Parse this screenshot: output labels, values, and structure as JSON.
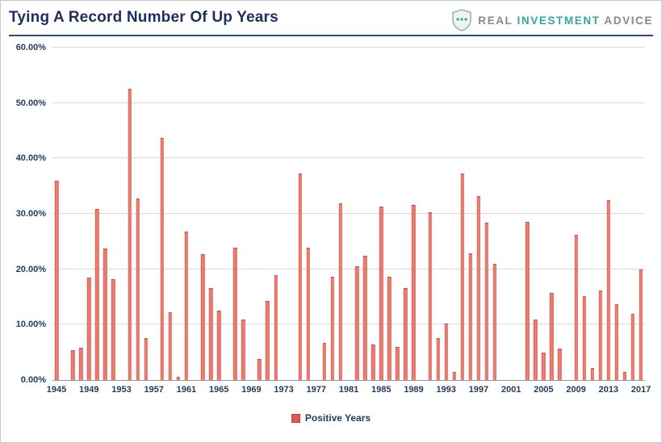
{
  "header": {
    "title": "Tying A Record Number Of Up Years",
    "logo": {
      "word1": "REAL",
      "word2": "INVESTMENT",
      "word3": "ADVICE"
    }
  },
  "legend": {
    "label": "Positive Years"
  },
  "colors": {
    "bar": "#E8655A",
    "title_navy": "#1E2F5E",
    "axis_text": "#1E3A5F",
    "header_rule": "#2A4A8C",
    "logo_teal": "#33A79C",
    "logo_gray": "#87898C"
  },
  "chart_data": {
    "type": "bar",
    "title": "Tying A Record Number Of Up Years",
    "xlabel": "",
    "ylabel": "",
    "ylim": [
      0,
      60
    ],
    "grid": true,
    "legend_position": "bottom",
    "legend_entries": [
      "Positive Years"
    ],
    "y_ticks": [
      "0.00%",
      "10.00%",
      "20.00%",
      "30.00%",
      "40.00%",
      "50.00%",
      "60.00%"
    ],
    "x_tick_labels": [
      "1945",
      "1949",
      "1953",
      "1957",
      "1961",
      "1965",
      "1969",
      "1973",
      "1977",
      "1981",
      "1985",
      "1989",
      "1993",
      "1997",
      "2001",
      "2005",
      "2009",
      "2013",
      "2017"
    ],
    "x_start_year": 1945,
    "years": [
      1945,
      1946,
      1947,
      1948,
      1949,
      1950,
      1951,
      1952,
      1953,
      1954,
      1955,
      1956,
      1957,
      1958,
      1959,
      1960,
      1961,
      1962,
      1963,
      1964,
      1965,
      1966,
      1967,
      1968,
      1969,
      1970,
      1971,
      1972,
      1973,
      1974,
      1975,
      1976,
      1977,
      1978,
      1979,
      1980,
      1981,
      1982,
      1983,
      1984,
      1985,
      1986,
      1987,
      1988,
      1989,
      1990,
      1991,
      1992,
      1993,
      1994,
      1995,
      1996,
      1997,
      1998,
      1999,
      2000,
      2001,
      2002,
      2003,
      2004,
      2005,
      2006,
      2007,
      2008,
      2009,
      2010,
      2011,
      2012,
      2013,
      2014,
      2015,
      2016,
      2017
    ],
    "values": [
      35.8,
      null,
      5.2,
      5.7,
      18.3,
      30.8,
      23.6,
      18.1,
      null,
      52.5,
      32.6,
      7.5,
      null,
      43.6,
      12.1,
      0.5,
      26.7,
      null,
      22.6,
      16.5,
      12.4,
      null,
      23.8,
      10.8,
      null,
      3.6,
      14.2,
      18.8,
      null,
      null,
      37.1,
      23.8,
      null,
      6.5,
      18.5,
      31.7,
      null,
      20.4,
      22.3,
      6.3,
      31.2,
      18.5,
      5.9,
      16.5,
      31.4,
      null,
      30.2,
      7.5,
      10.0,
      1.3,
      37.2,
      22.7,
      33.1,
      28.3,
      20.8,
      null,
      null,
      null,
      28.4,
      10.8,
      4.8,
      15.6,
      5.5,
      null,
      26.0,
      15.0,
      2.1,
      16.0,
      32.3,
      13.6,
      1.3,
      11.8,
      19.8
    ]
  }
}
